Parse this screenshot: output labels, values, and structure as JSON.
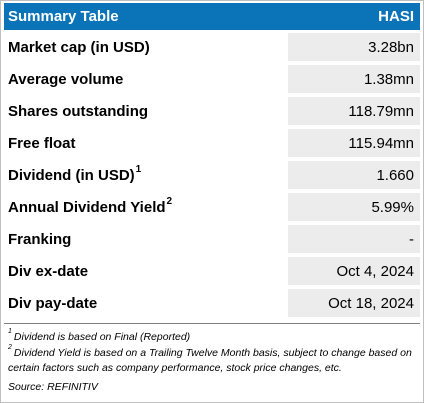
{
  "header": {
    "title": "Summary Table",
    "ticker": "HASI"
  },
  "rows": [
    {
      "label": "Market cap (in USD)",
      "sup": "",
      "value": "3.28bn"
    },
    {
      "label": "Average volume",
      "sup": "",
      "value": "1.38mn"
    },
    {
      "label": "Shares outstanding",
      "sup": "",
      "value": "118.79mn"
    },
    {
      "label": "Free float",
      "sup": "",
      "value": "115.94mn"
    },
    {
      "label": "Dividend (in USD)",
      "sup": "1",
      "value": "1.660"
    },
    {
      "label": "Annual Dividend Yield",
      "sup": "2",
      "value": "5.99%"
    },
    {
      "label": "Franking",
      "sup": "",
      "value": "-"
    },
    {
      "label": "Div ex-date",
      "sup": "",
      "value": "Oct 4, 2024"
    },
    {
      "label": "Div pay-date",
      "sup": "",
      "value": "Oct 18, 2024"
    }
  ],
  "footnotes": [
    {
      "marker": "1",
      "text": "Dividend is based on Final (Reported)"
    },
    {
      "marker": "2",
      "text": "Dividend Yield is based on a Trailing Twelve Month basis, subject to change based on certain factors such as company performance, stock price changes, etc."
    }
  ],
  "source": "Source: REFINITIV",
  "colors": {
    "header_bg": "#0b73b8",
    "value_bg": "#ececec"
  }
}
